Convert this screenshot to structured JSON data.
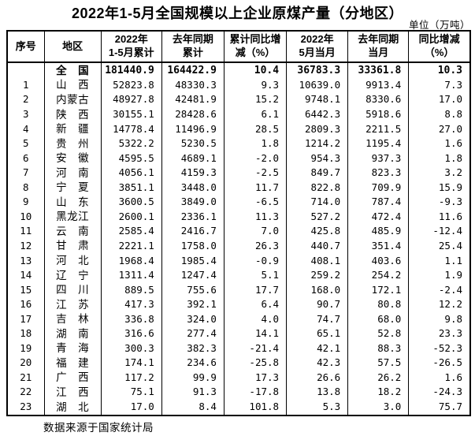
{
  "title": "2022年1-5月全国规模以上企业原煤产量（分地区）",
  "unit_label": "单位（万吨）",
  "source_note": "数据来源于国家统计局",
  "chart_data": {
    "type": "table",
    "title": "2022年1-5月全国规模以上企业原煤产量（分地区）",
    "unit": "万吨",
    "columns": [
      "序号",
      "地区",
      "2022年\n1-5月累计",
      "去年同期\n累计",
      "累计同比增\n减（%）",
      "2022年\n5月当月",
      "去年同期\n当月",
      "同比增减\n（%）"
    ],
    "rows": [
      {
        "seq": "",
        "region": "全　国",
        "national": true,
        "values": [
          "181440.9",
          "164422.9",
          "10.4",
          "36783.3",
          "33361.8",
          "10.3"
        ]
      },
      {
        "seq": "1",
        "region": "山　西",
        "values": [
          "52823.8",
          "48330.3",
          "9.3",
          "10639.0",
          "9913.4",
          "7.3"
        ]
      },
      {
        "seq": "2",
        "region": "内蒙古",
        "values": [
          "48927.8",
          "42481.9",
          "15.2",
          "9748.1",
          "8330.6",
          "17.0"
        ]
      },
      {
        "seq": "3",
        "region": "陕　西",
        "values": [
          "30155.1",
          "28428.6",
          "6.1",
          "6442.3",
          "5918.6",
          "8.8"
        ]
      },
      {
        "seq": "4",
        "region": "新　疆",
        "values": [
          "14778.4",
          "11496.9",
          "28.5",
          "2809.3",
          "2211.5",
          "27.0"
        ]
      },
      {
        "seq": "5",
        "region": "贵　州",
        "values": [
          "5322.2",
          "5230.5",
          "1.8",
          "1214.2",
          "1195.4",
          "1.6"
        ]
      },
      {
        "seq": "6",
        "region": "安　徽",
        "values": [
          "4595.5",
          "4689.1",
          "-2.0",
          "954.3",
          "937.3",
          "1.8"
        ]
      },
      {
        "seq": "7",
        "region": "河　南",
        "values": [
          "4056.1",
          "4159.3",
          "-2.5",
          "849.7",
          "823.3",
          "3.2"
        ]
      },
      {
        "seq": "8",
        "region": "宁　夏",
        "values": [
          "3851.1",
          "3448.0",
          "11.7",
          "822.8",
          "709.9",
          "15.9"
        ]
      },
      {
        "seq": "9",
        "region": "山　东",
        "values": [
          "3600.5",
          "3849.0",
          "-6.5",
          "714.0",
          "787.4",
          "-9.3"
        ]
      },
      {
        "seq": "10",
        "region": "黑龙江",
        "values": [
          "2600.1",
          "2336.1",
          "11.3",
          "527.2",
          "472.4",
          "11.6"
        ]
      },
      {
        "seq": "11",
        "region": "云　南",
        "values": [
          "2585.4",
          "2416.7",
          "7.0",
          "425.8",
          "485.9",
          "-12.4"
        ]
      },
      {
        "seq": "12",
        "region": "甘　肃",
        "values": [
          "2221.1",
          "1758.0",
          "26.3",
          "440.7",
          "351.4",
          "25.4"
        ]
      },
      {
        "seq": "13",
        "region": "河　北",
        "values": [
          "1968.4",
          "1985.4",
          "-0.9",
          "408.1",
          "403.6",
          "1.1"
        ]
      },
      {
        "seq": "14",
        "region": "辽　宁",
        "values": [
          "1311.4",
          "1247.4",
          "5.1",
          "259.2",
          "254.2",
          "1.9"
        ]
      },
      {
        "seq": "15",
        "region": "四　川",
        "values": [
          "889.5",
          "755.6",
          "17.7",
          "168.0",
          "172.1",
          "-2.4"
        ]
      },
      {
        "seq": "16",
        "region": "江　苏",
        "values": [
          "417.3",
          "392.1",
          "6.4",
          "90.7",
          "80.8",
          "12.2"
        ]
      },
      {
        "seq": "17",
        "region": "吉　林",
        "values": [
          "336.8",
          "324.0",
          "4.0",
          "74.7",
          "68.0",
          "9.8"
        ]
      },
      {
        "seq": "18",
        "region": "湖　南",
        "values": [
          "316.6",
          "277.4",
          "14.1",
          "65.1",
          "52.8",
          "23.3"
        ]
      },
      {
        "seq": "19",
        "region": "青　海",
        "values": [
          "300.3",
          "382.3",
          "-21.4",
          "42.1",
          "88.3",
          "-52.3"
        ]
      },
      {
        "seq": "20",
        "region": "福　建",
        "values": [
          "174.1",
          "234.6",
          "-25.8",
          "42.3",
          "57.5",
          "-26.5"
        ]
      },
      {
        "seq": "21",
        "region": "广　西",
        "values": [
          "117.2",
          "99.9",
          "17.3",
          "26.6",
          "26.2",
          "1.6"
        ]
      },
      {
        "seq": "22",
        "region": "江　西",
        "values": [
          "75.1",
          "91.3",
          "-17.8",
          "13.8",
          "18.2",
          "-24.3"
        ]
      },
      {
        "seq": "23",
        "region": "湖　北",
        "values": [
          "17.0",
          "8.4",
          "101.8",
          "5.3",
          "3.0",
          "75.7"
        ]
      }
    ]
  }
}
